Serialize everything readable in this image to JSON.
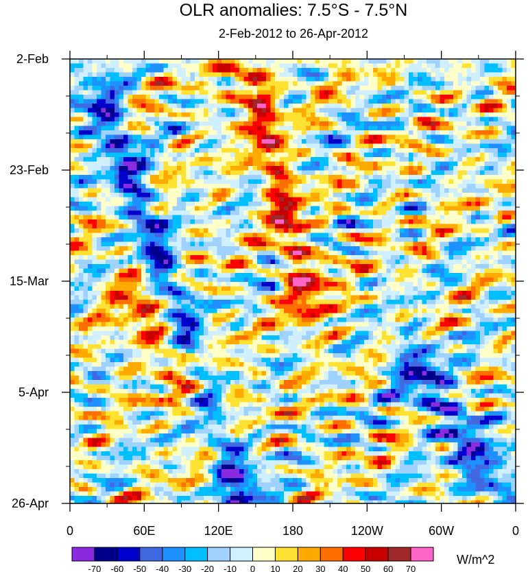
{
  "chart_data": {
    "type": "heatmap",
    "title": "OLR anomalies: 7.5°S - 7.5°N",
    "subtitle": "2-Feb-2012 to 26-Apr-2012",
    "x_tick_labels": [
      "0",
      "60E",
      "120E",
      "180",
      "120W",
      "60W",
      "0"
    ],
    "x_ticks_deg": [
      0,
      60,
      120,
      180,
      240,
      300,
      360
    ],
    "xlim": [
      0,
      360
    ],
    "y_tick_labels": [
      "2-Feb",
      "23-Feb",
      "15-Mar",
      "5-Apr",
      "26-Apr"
    ],
    "y_ticks_day": [
      0,
      21,
      42,
      63,
      84
    ],
    "ylim_days": [
      0,
      84
    ],
    "y_axis_direction": "time increases downward",
    "colorbar": {
      "units": "W/m^2",
      "levels": [
        "-70",
        "-60",
        "-50",
        "-40",
        "-30",
        "-20",
        "-10",
        "0",
        "10",
        "20",
        "30",
        "40",
        "50",
        "60",
        "70"
      ],
      "colors": [
        "#8a2be2",
        "#00008b",
        "#0000cd",
        "#4169e1",
        "#1e90ff",
        "#00bfff",
        "#a0d2ff",
        "#d1f0ff",
        "#ffffc8",
        "#ffe132",
        "#ffaa00",
        "#ff6e00",
        "#ff0000",
        "#c80000",
        "#a02828",
        "#ff64c8"
      ]
    },
    "features": [
      {
        "desc": "strong negative anomaly band",
        "lon_start": 30,
        "day_start": 10,
        "lon_end": 140,
        "day_end": 84,
        "value": -50
      },
      {
        "desc": "positive anomaly band",
        "lon_start": 150,
        "day_start": 5,
        "lon_end": 190,
        "day_end": 45,
        "value": 45
      },
      {
        "desc": "positive anomaly area",
        "lon_start": 55,
        "day_start": 45,
        "lon_end": 110,
        "day_end": 65,
        "value": 35
      },
      {
        "desc": "negative anomaly area",
        "lon_start": 280,
        "day_start": 58,
        "lon_end": 340,
        "day_end": 80,
        "value": -45
      }
    ]
  }
}
